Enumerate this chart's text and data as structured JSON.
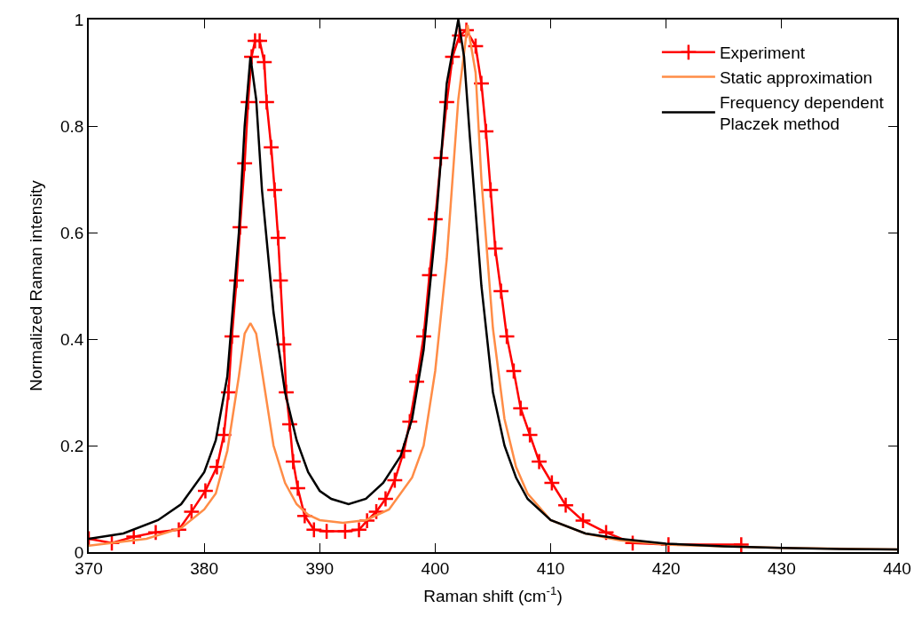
{
  "chart_data": {
    "type": "line",
    "xlabel": "Raman shift (cm$^{-1}$)",
    "ylabel": "Normalized Raman intensity",
    "xlim": [
      370,
      440
    ],
    "ylim": [
      0,
      1
    ],
    "xticks": [
      370,
      380,
      390,
      400,
      410,
      420,
      430,
      440
    ],
    "yticks": [
      0,
      0.2,
      0.4,
      0.6,
      0.8,
      1
    ],
    "legend": "top right",
    "series": [
      {
        "name": "Experiment",
        "color": "#ff0000",
        "marker": "cross",
        "x": [
          370,
          372,
          373.9,
          375.8,
          377.8,
          378.9,
          380.1,
          381.1,
          381.7,
          382.1,
          382.4,
          382.8,
          383.1,
          383.5,
          383.8,
          384.1,
          384.4,
          384.8,
          385.2,
          385.4,
          385.8,
          386.1,
          386.4,
          386.6,
          386.9,
          387.1,
          387.4,
          387.7,
          388.1,
          388.7,
          389.5,
          390.6,
          392.2,
          393.4,
          394.1,
          394.9,
          395.7,
          396.5,
          397.3,
          397.8,
          398.4,
          399.0,
          399.5,
          400.0,
          400.5,
          401.0,
          401.5,
          402.1,
          402.7,
          403.5,
          404.0,
          404.4,
          404.8,
          405.2,
          405.7,
          406.2,
          406.8,
          407.4,
          408.2,
          409.0,
          410.1,
          411.3,
          412.8,
          414.8,
          417.1,
          420.2,
          426.5
        ],
        "values": [
          0.025,
          0.017,
          0.029,
          0.037,
          0.042,
          0.076,
          0.115,
          0.16,
          0.22,
          0.3,
          0.405,
          0.51,
          0.61,
          0.73,
          0.845,
          0.93,
          0.96,
          0.96,
          0.92,
          0.845,
          0.76,
          0.68,
          0.59,
          0.51,
          0.39,
          0.3,
          0.24,
          0.17,
          0.12,
          0.068,
          0.042,
          0.039,
          0.039,
          0.042,
          0.059,
          0.076,
          0.1,
          0.135,
          0.19,
          0.245,
          0.32,
          0.405,
          0.52,
          0.625,
          0.74,
          0.845,
          0.93,
          0.97,
          0.98,
          0.95,
          0.88,
          0.79,
          0.68,
          0.57,
          0.49,
          0.405,
          0.34,
          0.27,
          0.22,
          0.17,
          0.13,
          0.088,
          0.059,
          0.037,
          0.017,
          0.014,
          0.014
        ]
      },
      {
        "name": "Static approximation",
        "color": "#ff8c46",
        "marker": "none",
        "x": [
          370,
          375,
          378,
          380,
          381,
          382,
          383,
          383.5,
          384,
          384.5,
          385,
          386,
          387,
          388,
          389,
          390,
          392,
          394,
          396,
          398,
          399,
          400,
          401,
          402,
          402.8,
          403.5,
          404,
          405,
          406,
          407,
          408,
          410,
          413,
          416,
          420,
          430,
          440
        ],
        "values": [
          0.012,
          0.025,
          0.045,
          0.08,
          0.11,
          0.19,
          0.33,
          0.41,
          0.43,
          0.41,
          0.34,
          0.2,
          0.13,
          0.09,
          0.07,
          0.06,
          0.055,
          0.06,
          0.08,
          0.14,
          0.2,
          0.34,
          0.55,
          0.85,
          0.99,
          0.9,
          0.7,
          0.42,
          0.25,
          0.16,
          0.11,
          0.06,
          0.035,
          0.022,
          0.014,
          0.008,
          0.005
        ]
      },
      {
        "name": "Frequency dependent\nPlaczek method",
        "color": "#000000",
        "marker": "none",
        "x": [
          370,
          373,
          376,
          378,
          380,
          381,
          382,
          383,
          383.5,
          384,
          384.5,
          385,
          386,
          387,
          388,
          389,
          390,
          391,
          392.5,
          394,
          395.5,
          397,
          398,
          399,
          400,
          401,
          402,
          402.5,
          403,
          404,
          405,
          406,
          407,
          408,
          410,
          413,
          416,
          420,
          425,
          430,
          435,
          440
        ],
        "values": [
          0.025,
          0.035,
          0.06,
          0.09,
          0.15,
          0.21,
          0.33,
          0.6,
          0.8,
          0.93,
          0.85,
          0.68,
          0.45,
          0.3,
          0.21,
          0.15,
          0.115,
          0.1,
          0.09,
          0.1,
          0.13,
          0.18,
          0.25,
          0.38,
          0.6,
          0.88,
          1.0,
          0.93,
          0.78,
          0.5,
          0.3,
          0.2,
          0.14,
          0.1,
          0.06,
          0.035,
          0.025,
          0.016,
          0.011,
          0.008,
          0.006,
          0.005
        ]
      }
    ]
  }
}
